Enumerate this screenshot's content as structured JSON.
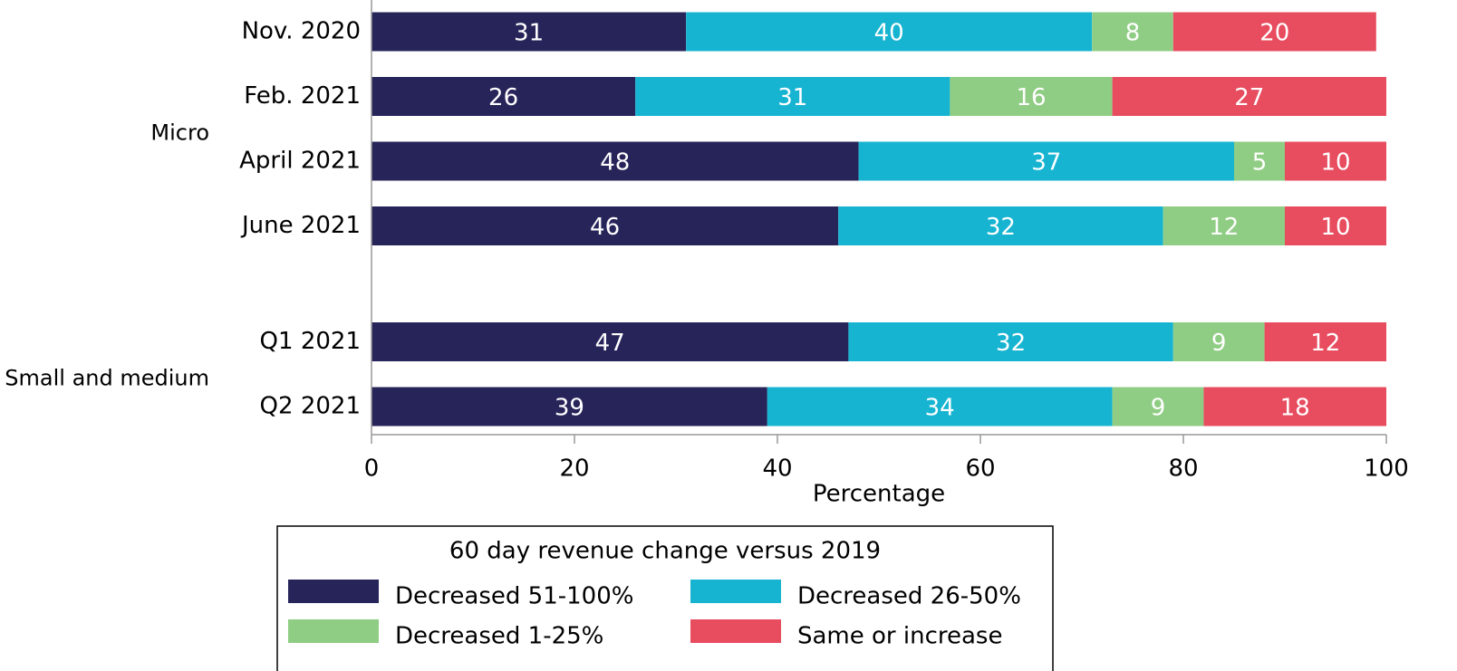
{
  "chart_data": {
    "type": "stacked-barh",
    "categories": [
      "Nov. 2020",
      "Feb. 2021",
      "April 2021",
      "June 2021",
      null,
      "Q1 2021",
      "Q2 2021"
    ],
    "groups": [
      {
        "name": "Micro"
      },
      {
        "name": "Small and medium"
      }
    ],
    "series": [
      {
        "name": "Decreased 51-100%",
        "color": "#27245a",
        "values": [
          31,
          26,
          48,
          46,
          null,
          47,
          39
        ]
      },
      {
        "name": "Decreased 26-50%",
        "color": "#17b4d2",
        "values": [
          40,
          31,
          37,
          32,
          null,
          32,
          34
        ]
      },
      {
        "name": "Decreased 1-25%",
        "color": "#90cd84",
        "values": [
          8,
          16,
          5,
          12,
          null,
          9,
          9
        ]
      },
      {
        "name": "Same or increase",
        "color": "#e84c5f",
        "values": [
          20,
          27,
          10,
          10,
          null,
          12,
          18
        ]
      }
    ],
    "xlabel": "Percentage",
    "xlim": [
      0,
      100
    ],
    "xticks": [
      0,
      20,
      40,
      60,
      80,
      100
    ],
    "grid": false,
    "legend_title": "60 day revenue change versus 2019",
    "legend_position": "bottom"
  }
}
